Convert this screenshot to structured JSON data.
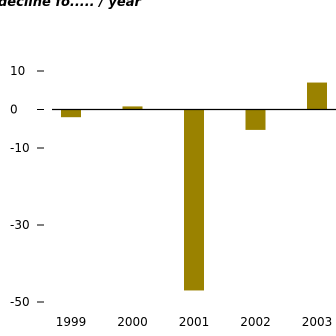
{
  "chart_data": {
    "type": "bar",
    "title": "decline fo..... / year",
    "categories": [
      "1999",
      "2000",
      "2001",
      "2002",
      "2003"
    ],
    "values": [
      -2,
      0.8,
      -47,
      -5.3,
      7
    ],
    "y_ticks": [
      10,
      0,
      -10,
      -30,
      -50
    ],
    "y_tick_labels": [
      "10",
      "0",
      "-10",
      "-30",
      "-50"
    ],
    "ylim": [
      -50,
      10
    ],
    "xlabel": "",
    "ylabel": "",
    "bar_color": "#9a8200",
    "zero_line_color": "#000000",
    "grid": false,
    "legend": "none"
  }
}
